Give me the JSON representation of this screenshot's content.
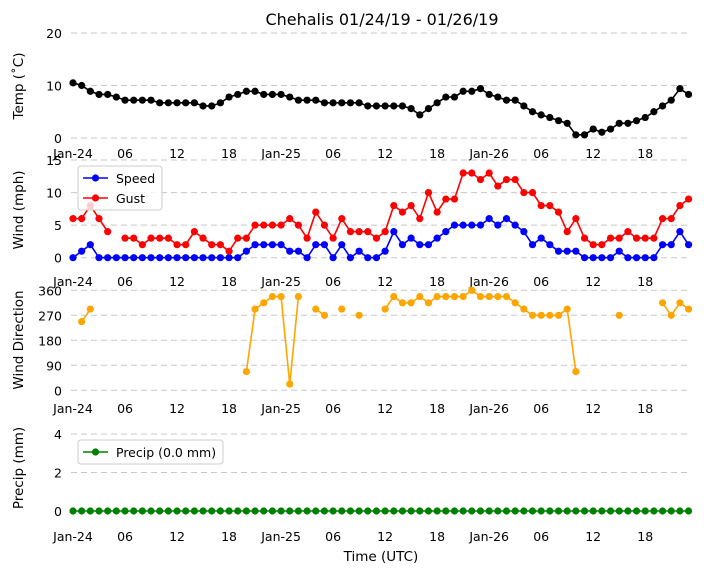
{
  "chart_data": [
    {
      "type": "line",
      "title": "Chehalis 01/24/19 - 01/26/19",
      "ylabel": "Temp ($^\\circ$C)",
      "ylabel_display": "Temp (˚C)",
      "ylim": [
        0,
        20
      ],
      "yticks": [
        0,
        10,
        20
      ],
      "grid": true,
      "x_ticks": [
        "Jan-24",
        "06",
        "12",
        "18",
        "Jan-25",
        "06",
        "12",
        "18",
        "Jan-26",
        "06",
        "12",
        "18"
      ],
      "x_hours": "hourly from Jan-24 00:00",
      "series": [
        {
          "color": "#000000",
          "values": [
            10.5,
            10,
            8.9,
            8.3,
            8.3,
            7.8,
            7.2,
            7.2,
            7.2,
            7.2,
            6.7,
            6.7,
            6.7,
            6.7,
            6.7,
            6.1,
            6.1,
            6.7,
            7.8,
            8.3,
            8.9,
            8.9,
            8.3,
            8.3,
            8.3,
            7.8,
            7.2,
            7.2,
            7.2,
            6.7,
            6.7,
            6.7,
            6.7,
            6.7,
            6.1,
            6.1,
            6.1,
            6.1,
            6.1,
            5.6,
            4.4,
            5.6,
            6.7,
            7.8,
            7.8,
            8.9,
            8.9,
            9.4,
            8.3,
            7.8,
            7.2,
            7.2,
            6.1,
            5,
            4.4,
            3.9,
            3.3,
            2.8,
            0.6,
            0.6,
            1.7,
            1.1,
            1.7,
            2.8,
            2.8,
            3.3,
            3.9,
            5,
            6.1,
            7.2,
            9.4,
            8.3
          ]
        }
      ]
    },
    {
      "type": "line",
      "ylabel": "Wind (mph)",
      "ylim": [
        0,
        15
      ],
      "yticks": [
        0,
        5,
        10,
        15
      ],
      "grid": true,
      "legend": "top-left",
      "x_ticks": [
        "Jan-24",
        "06",
        "12",
        "18",
        "Jan-25",
        "06",
        "12",
        "18",
        "Jan-26",
        "06",
        "12",
        "18"
      ],
      "series": [
        {
          "name": "Speed",
          "color": "#0000ff",
          "values": [
            0,
            1,
            2,
            0,
            0,
            0,
            0,
            0,
            0,
            0,
            0,
            0,
            0,
            0,
            0,
            0,
            0,
            0,
            0,
            0,
            1,
            2,
            2,
            2,
            2,
            1,
            1,
            0,
            2,
            2,
            0,
            2,
            0,
            1,
            0,
            0,
            1,
            4,
            2,
            3,
            2,
            2,
            3,
            4,
            5,
            5,
            5,
            5,
            6,
            5,
            6,
            5,
            4,
            2,
            3,
            2,
            1,
            1,
            1,
            0,
            0,
            0,
            0,
            1,
            0,
            0,
            0,
            0,
            2,
            2,
            4,
            2
          ]
        },
        {
          "name": "Gust",
          "color": "#ff0000",
          "values": [
            6,
            6,
            8,
            6,
            4,
            null,
            3,
            3,
            2,
            3,
            3,
            3,
            2,
            2,
            4,
            3,
            2,
            2,
            1,
            3,
            3,
            5,
            5,
            5,
            5,
            6,
            5,
            3,
            7,
            5,
            3,
            6,
            4,
            4,
            4,
            3,
            4,
            8,
            7,
            8,
            6,
            10,
            7,
            9,
            9,
            13,
            13,
            12,
            13,
            11,
            12,
            12,
            10,
            10,
            8,
            8,
            7,
            4,
            6,
            3,
            2,
            2,
            3,
            3,
            4,
            3,
            3,
            3,
            6,
            6,
            8,
            9
          ]
        }
      ]
    },
    {
      "type": "line",
      "ylabel": "Wind Direction",
      "ylim": [
        0,
        360
      ],
      "yticks": [
        0,
        90,
        180,
        270,
        360
      ],
      "grid": true,
      "x_ticks": [
        "Jan-24",
        "06",
        "12",
        "18",
        "Jan-25",
        "06",
        "12",
        "18",
        "Jan-26",
        "06",
        "12",
        "18"
      ],
      "series": [
        {
          "color": "#ffa500",
          "values": [
            null,
            247.5,
            292.5,
            null,
            null,
            null,
            null,
            null,
            null,
            null,
            null,
            null,
            null,
            null,
            null,
            null,
            null,
            null,
            null,
            null,
            67.5,
            292.5,
            315,
            337.5,
            337.5,
            22.5,
            337.5,
            null,
            292.5,
            270,
            null,
            292.5,
            null,
            270,
            null,
            null,
            292.5,
            337.5,
            315,
            315,
            337.5,
            315,
            337.5,
            337.5,
            337.5,
            337.5,
            360,
            337.5,
            337.5,
            337.5,
            337.5,
            315,
            292.5,
            270,
            270,
            270,
            270,
            292.5,
            67.5,
            null,
            null,
            null,
            null,
            270,
            null,
            null,
            null,
            null,
            315,
            270,
            315,
            292.5
          ]
        }
      ]
    },
    {
      "type": "line",
      "ylabel": "Precip (mm)",
      "xlabel": "Time (UTC)",
      "ylim": [
        0,
        4
      ],
      "yticks": [
        0,
        2,
        4
      ],
      "grid": true,
      "legend": "top-left",
      "x_ticks": [
        "Jan-24",
        "06",
        "12",
        "18",
        "Jan-25",
        "06",
        "12",
        "18",
        "Jan-26",
        "06",
        "12",
        "18"
      ],
      "series": [
        {
          "name": "Precip (0.0 mm)",
          "color": "#008000",
          "values": [
            0,
            0,
            0,
            0,
            0,
            0,
            0,
            0,
            0,
            0,
            0,
            0,
            0,
            0,
            0,
            0,
            0,
            0,
            0,
            0,
            0,
            0,
            0,
            0,
            0,
            0,
            0,
            0,
            0,
            0,
            0,
            0,
            0,
            0,
            0,
            0,
            0,
            0,
            0,
            0,
            0,
            0,
            0,
            0,
            0,
            0,
            0,
            0,
            0,
            0,
            0,
            0,
            0,
            0,
            0,
            0,
            0,
            0,
            0,
            0,
            0,
            0,
            0,
            0,
            0,
            0,
            0,
            0,
            0,
            0,
            0,
            0
          ]
        }
      ]
    }
  ]
}
